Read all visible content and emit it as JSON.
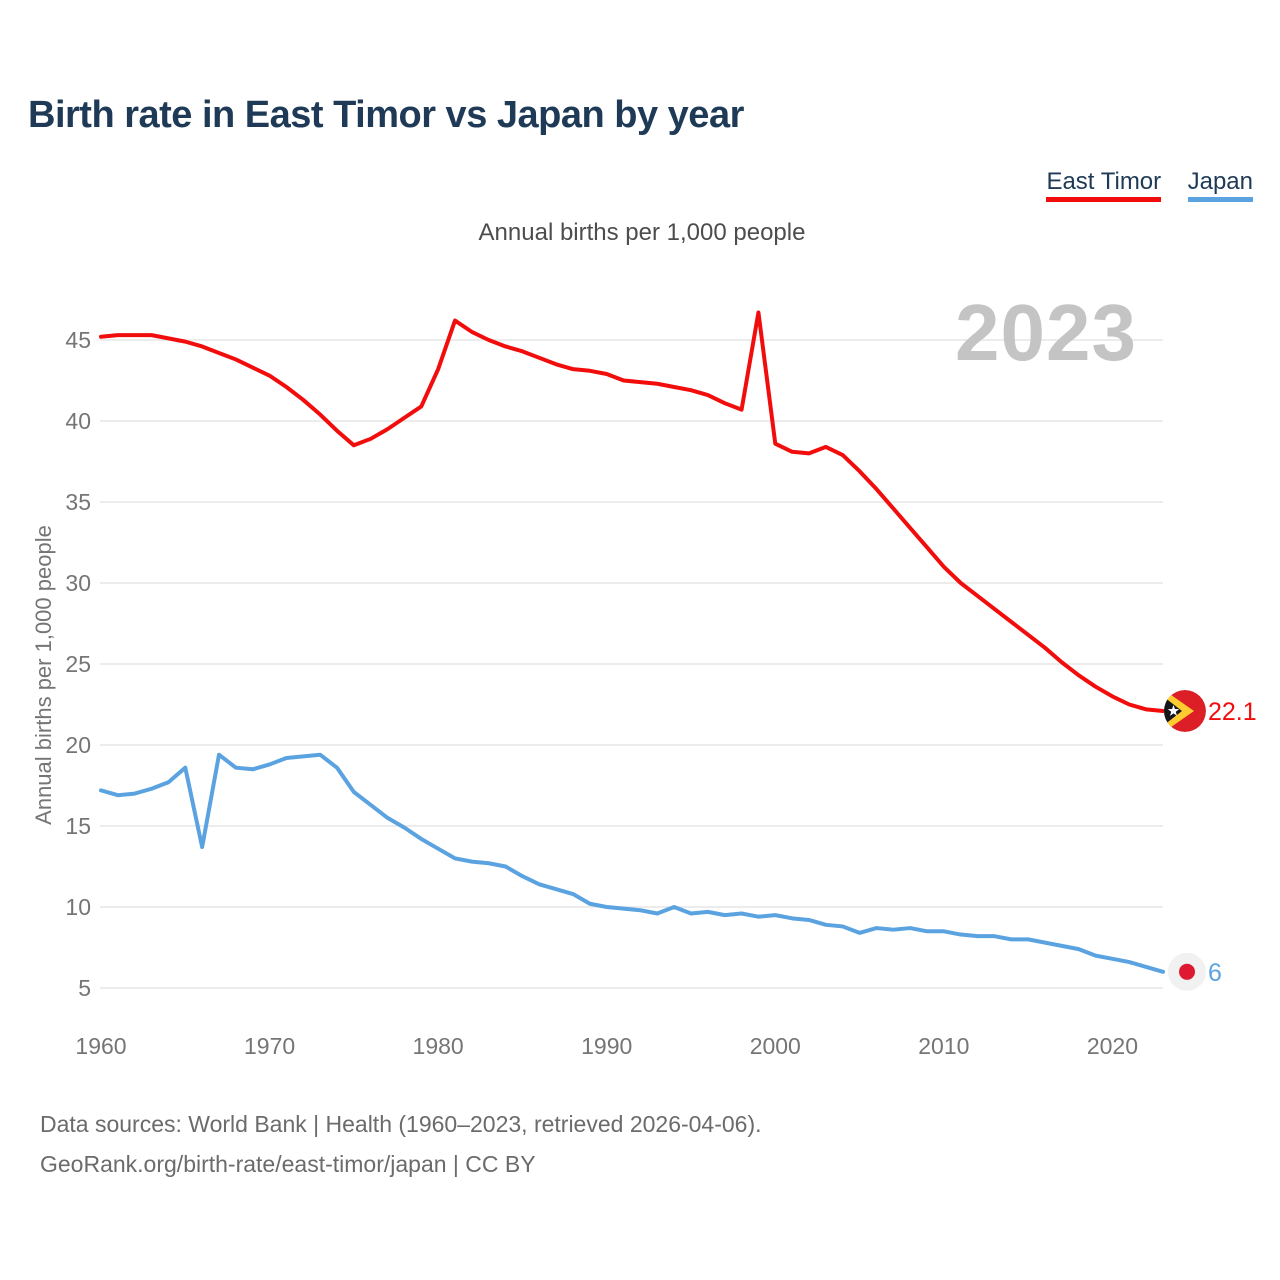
{
  "header": {
    "title": "Birth rate in East Timor vs Japan by year"
  },
  "legend": {
    "items": [
      {
        "label": "East Timor",
        "color": "#f20d0d"
      },
      {
        "label": "Japan",
        "color": "#5ba3e0"
      }
    ]
  },
  "chart": {
    "subtitle": "Annual births per 1,000 people",
    "y_axis_label": "Annual births per 1,000 people",
    "watermark": "2023"
  },
  "chart_data": {
    "type": "line",
    "title": "Birth rate in East Timor vs Japan by year",
    "subtitle": "Annual births per 1,000 people",
    "xlabel": "",
    "ylabel": "Annual births per 1,000 people",
    "grid": "horizontal",
    "legend_position": "top-right",
    "x_ticks": [
      1960,
      1970,
      1980,
      1990,
      2000,
      2010,
      2020
    ],
    "y_ticks": [
      5,
      10,
      15,
      20,
      25,
      30,
      35,
      40,
      45
    ],
    "ylim": [
      4,
      48
    ],
    "x": [
      1960,
      1961,
      1962,
      1963,
      1964,
      1965,
      1966,
      1967,
      1968,
      1969,
      1970,
      1971,
      1972,
      1973,
      1974,
      1975,
      1976,
      1977,
      1978,
      1979,
      1980,
      1981,
      1982,
      1983,
      1984,
      1985,
      1986,
      1987,
      1988,
      1989,
      1990,
      1991,
      1992,
      1993,
      1994,
      1995,
      1996,
      1997,
      1998,
      1999,
      2000,
      2001,
      2002,
      2003,
      2004,
      2005,
      2006,
      2007,
      2008,
      2009,
      2010,
      2011,
      2012,
      2013,
      2014,
      2015,
      2016,
      2017,
      2018,
      2019,
      2020,
      2021,
      2022,
      2023
    ],
    "series": [
      {
        "name": "East Timor",
        "color": "#f20d0d",
        "end_label": "22.1",
        "end_value": 22.1,
        "values": [
          45.2,
          45.3,
          45.3,
          45.3,
          45.1,
          44.9,
          44.6,
          44.2,
          43.8,
          43.3,
          42.8,
          42.1,
          41.3,
          40.4,
          39.4,
          38.5,
          38.9,
          39.5,
          40.2,
          40.9,
          43.2,
          46.2,
          45.5,
          45.0,
          44.6,
          44.3,
          43.9,
          43.5,
          43.2,
          43.1,
          42.9,
          42.5,
          42.4,
          42.3,
          42.1,
          41.9,
          41.6,
          41.1,
          40.7,
          46.7,
          38.6,
          38.1,
          38.0,
          38.4,
          37.9,
          36.9,
          35.8,
          34.6,
          33.4,
          32.2,
          31.0,
          30.0,
          29.2,
          28.4,
          27.6,
          26.8,
          26.0,
          25.1,
          24.3,
          23.6,
          23.0,
          22.5,
          22.2,
          22.1
        ]
      },
      {
        "name": "Japan",
        "color": "#5ba3e0",
        "end_label": "6",
        "end_value": 6.0,
        "values": [
          17.2,
          16.9,
          17.0,
          17.3,
          17.7,
          18.6,
          13.7,
          19.4,
          18.6,
          18.5,
          18.8,
          19.2,
          19.3,
          19.4,
          18.6,
          17.1,
          16.3,
          15.5,
          14.9,
          14.2,
          13.6,
          13.0,
          12.8,
          12.7,
          12.5,
          11.9,
          11.4,
          11.1,
          10.8,
          10.2,
          10.0,
          9.9,
          9.8,
          9.6,
          10.0,
          9.6,
          9.7,
          9.5,
          9.6,
          9.4,
          9.5,
          9.3,
          9.2,
          8.9,
          8.8,
          8.4,
          8.7,
          8.6,
          8.7,
          8.5,
          8.5,
          8.3,
          8.2,
          8.2,
          8.0,
          8.0,
          7.8,
          7.6,
          7.4,
          7.0,
          6.8,
          6.6,
          6.3,
          6.0
        ]
      }
    ]
  },
  "footer": {
    "line1": "Data sources: World Bank | Health (1960–2023, retrieved 2026-04-06).",
    "line2": "GeoRank.org/birth-rate/east-timor/japan | CC BY"
  }
}
